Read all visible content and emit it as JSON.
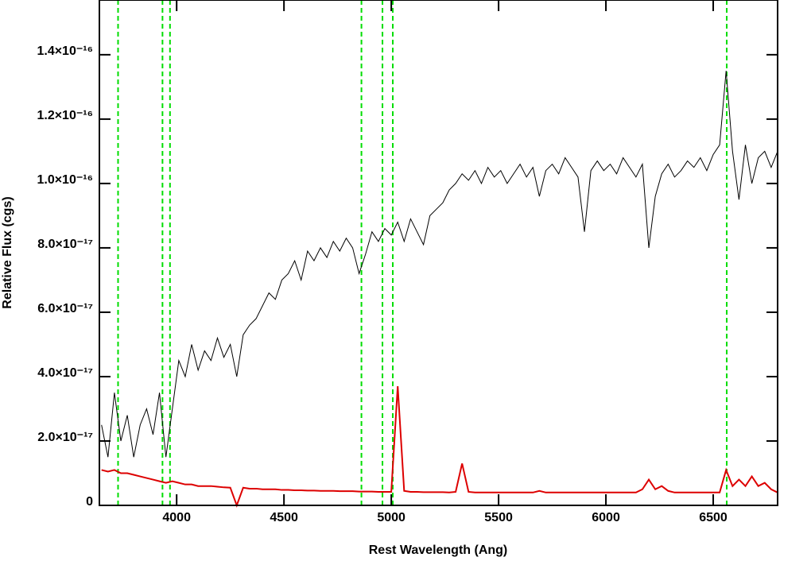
{
  "chart_data": {
    "type": "line",
    "xlabel": "Rest Wavelength (Ang)",
    "ylabel": "Relative Flux (cgs)",
    "xlim": [
      3640,
      6800
    ],
    "ylim": [
      0,
      1.57e-16
    ],
    "xticks": [
      4000,
      4500,
      5000,
      5500,
      6000,
      6500
    ],
    "yticks": [
      0,
      {
        "value": 2e-17,
        "label": "2.0×10⁻¹⁷"
      },
      {
        "value": 4e-17,
        "label": "4.0×10⁻¹⁷"
      },
      {
        "value": 6e-17,
        "label": "6.0×10⁻¹⁷"
      },
      {
        "value": 8e-17,
        "label": "8.0×10⁻¹⁷"
      },
      {
        "value": 1e-16,
        "label": "1.0×10⁻¹⁶"
      },
      {
        "value": 1.2e-16,
        "label": "1.2×10⁻¹⁶"
      },
      {
        "value": 1.4e-16,
        "label": "1.4×10⁻¹⁶"
      }
    ],
    "vlines": [
      3727,
      3934,
      3969,
      4861,
      4959,
      5007,
      6563
    ],
    "vline_color": "#00dd00",
    "x": [
      3650,
      3680,
      3710,
      3740,
      3770,
      3800,
      3830,
      3860,
      3890,
      3920,
      3950,
      3980,
      4010,
      4040,
      4070,
      4100,
      4130,
      4160,
      4190,
      4220,
      4250,
      4280,
      4310,
      4340,
      4370,
      4400,
      4430,
      4460,
      4490,
      4520,
      4550,
      4580,
      4610,
      4640,
      4670,
      4700,
      4730,
      4760,
      4790,
      4820,
      4850,
      4880,
      4910,
      4940,
      4970,
      5000,
      5030,
      5060,
      5090,
      5120,
      5150,
      5180,
      5210,
      5240,
      5270,
      5300,
      5330,
      5360,
      5390,
      5420,
      5450,
      5480,
      5510,
      5540,
      5570,
      5600,
      5630,
      5660,
      5690,
      5720,
      5750,
      5780,
      5810,
      5840,
      5870,
      5900,
      5930,
      5960,
      5990,
      6020,
      6050,
      6080,
      6110,
      6140,
      6170,
      6200,
      6230,
      6260,
      6290,
      6320,
      6350,
      6380,
      6410,
      6440,
      6470,
      6500,
      6530,
      6560,
      6590,
      6620,
      6650,
      6680,
      6710,
      6740,
      6770,
      6800
    ],
    "series": [
      {
        "color": "#000000",
        "values": [
          2.5e-17,
          1.5e-17,
          3.5e-17,
          2e-17,
          2.8e-17,
          1.5e-17,
          2.5e-17,
          3e-17,
          2.2e-17,
          3.5e-17,
          1.5e-17,
          3e-17,
          4.5e-17,
          4e-17,
          5e-17,
          4.2e-17,
          4.8e-17,
          4.5e-17,
          5.2e-17,
          4.6e-17,
          5e-17,
          4e-17,
          5.3e-17,
          5.6e-17,
          5.8e-17,
          6.2e-17,
          6.6e-17,
          6.4e-17,
          7e-17,
          7.2e-17,
          7.6e-17,
          7e-17,
          7.9e-17,
          7.6e-17,
          8e-17,
          7.7e-17,
          8.2e-17,
          7.9e-17,
          8.3e-17,
          8e-17,
          7.2e-17,
          7.8e-17,
          8.5e-17,
          8.2e-17,
          8.6e-17,
          8.4e-17,
          8.8e-17,
          8.2e-17,
          8.9e-17,
          8.5e-17,
          8.1e-17,
          9e-17,
          9.2e-17,
          9.4e-17,
          9.8e-17,
          1e-16,
          1.03e-16,
          1.01e-16,
          1.04e-16,
          1e-16,
          1.05e-16,
          1.02e-16,
          1.04e-16,
          1e-16,
          1.03e-16,
          1.06e-16,
          1.02e-16,
          1.05e-16,
          9.6e-17,
          1.04e-16,
          1.06e-16,
          1.03e-16,
          1.08e-16,
          1.05e-16,
          1.02e-16,
          8.5e-17,
          1.04e-16,
          1.07e-16,
          1.04e-16,
          1.06e-16,
          1.03e-16,
          1.08e-16,
          1.05e-16,
          1.02e-16,
          1.06e-16,
          8e-17,
          9.6e-17,
          1.03e-16,
          1.06e-16,
          1.02e-16,
          1.04e-16,
          1.07e-16,
          1.05e-16,
          1.08e-16,
          1.04e-16,
          1.09e-16,
          1.12e-16,
          1.35e-16,
          1.1e-16,
          9.5e-17,
          1.12e-16,
          1e-16,
          1.08e-16,
          1.1e-16,
          1.05e-16,
          1.1e-16
        ]
      },
      {
        "color": "#dd0000",
        "values": [
          1.1e-17,
          1.05e-17,
          1.1e-17,
          1e-17,
          1e-17,
          9.5e-18,
          9e-18,
          8.5e-18,
          8e-18,
          7.5e-18,
          7e-18,
          7.5e-18,
          7e-18,
          6.5e-18,
          6.5e-18,
          6e-18,
          6e-18,
          6e-18,
          5.8e-18,
          5.6e-18,
          5.5e-18,
          0,
          5.5e-18,
          5.2e-18,
          5.2e-18,
          5e-18,
          5e-18,
          5e-18,
          4.8e-18,
          4.8e-18,
          4.7e-18,
          4.7e-18,
          4.6e-18,
          4.6e-18,
          4.5e-18,
          4.5e-18,
          4.5e-18,
          4.4e-18,
          4.4e-18,
          4.4e-18,
          4.3e-18,
          4.3e-18,
          4.3e-18,
          4.2e-18,
          4.2e-18,
          4.2e-18,
          3.7e-17,
          4.5e-18,
          4.2e-18,
          4.2e-18,
          4.1e-18,
          4.1e-18,
          4.1e-18,
          4.1e-18,
          4e-18,
          4.2e-18,
          1.3e-17,
          4.2e-18,
          4e-18,
          4e-18,
          4e-18,
          4e-18,
          4e-18,
          4e-18,
          4e-18,
          4e-18,
          4e-18,
          4e-18,
          4.5e-18,
          4e-18,
          4e-18,
          4e-18,
          4e-18,
          4e-18,
          4e-18,
          4e-18,
          4e-18,
          4e-18,
          4e-18,
          4e-18,
          4e-18,
          4e-18,
          4e-18,
          4e-18,
          5e-18,
          8e-18,
          5e-18,
          6e-18,
          4.5e-18,
          4e-18,
          4e-18,
          4e-18,
          4e-18,
          4e-18,
          4e-18,
          4e-18,
          4e-18,
          1.1e-17,
          6e-18,
          8e-18,
          6e-18,
          9e-18,
          6e-18,
          7e-18,
          5e-18,
          4e-18
        ]
      }
    ]
  }
}
